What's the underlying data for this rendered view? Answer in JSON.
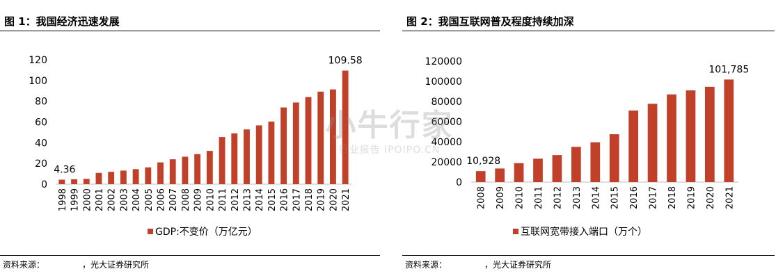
{
  "watermark": {
    "main": "小牛行家",
    "sub": "行业报告 IPOIPO.CN"
  },
  "charts": [
    {
      "title": "图 1：我国经济迅速发展",
      "source_label": "资料来源：",
      "source_org": "，光大证券研究所",
      "bar_color": "#c0402a",
      "chart_data": {
        "type": "bar",
        "categories": [
          "1998",
          "1999",
          "2000",
          "2001",
          "2002",
          "2003",
          "2004",
          "2005",
          "2006",
          "2007",
          "2008",
          "2009",
          "2010",
          "2011",
          "2012",
          "2013",
          "2014",
          "2015",
          "2016",
          "2017",
          "2018",
          "2019",
          "2020",
          "2021"
        ],
        "series": [
          {
            "name": "GDP:不变价（万亿元）",
            "values": [
              4.36,
              4.7,
              5.1,
              10.9,
              11.9,
              13.1,
              14.5,
              16.2,
              21.0,
              24.0,
              26.5,
              29.0,
              32.1,
              45.5,
              49.0,
              52.8,
              56.7,
              60.4,
              74.0,
              78.8,
              84.0,
              89.3,
              91.4,
              109.58
            ]
          }
        ],
        "ylim": [
          0,
          120
        ],
        "yticks": [
          "0",
          "20",
          "40",
          "60",
          "80",
          "100",
          "120"
        ],
        "data_labels": [
          {
            "index": 0,
            "text": "4.36"
          },
          {
            "index": 23,
            "text": "109.58"
          }
        ],
        "legend_position": "bottom",
        "xlabel": "",
        "ylabel": ""
      }
    },
    {
      "title": "图 2：我国互联网普及程度持续加深",
      "source_label": "资料来源：",
      "source_org": "，光大证券研究所",
      "bar_color": "#c0402a",
      "chart_data": {
        "type": "bar",
        "categories": [
          "2008",
          "2009",
          "2010",
          "2011",
          "2012",
          "2013",
          "2014",
          "2015",
          "2016",
          "2017",
          "2018",
          "2019",
          "2020",
          "2021"
        ],
        "series": [
          {
            "name": "互联网宽带接入端口（万个）",
            "values": [
              10928,
              13500,
              18800,
              23200,
              26800,
              35000,
              39500,
              47500,
              71000,
              77700,
              87000,
              91000,
              94600,
              101785
            ]
          }
        ],
        "ylim": [
          0,
          120000
        ],
        "yticks": [
          "0",
          "20000",
          "40000",
          "60000",
          "80000",
          "100000",
          "120000"
        ],
        "data_labels": [
          {
            "index": 0,
            "text": "10,928"
          },
          {
            "index": 13,
            "text": "101,785"
          }
        ],
        "legend_position": "bottom",
        "xlabel": "",
        "ylabel": ""
      }
    }
  ]
}
